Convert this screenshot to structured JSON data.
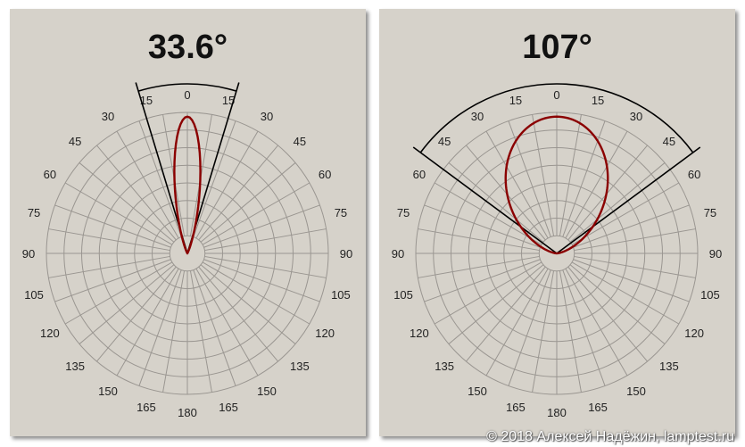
{
  "chart_data": [
    {
      "type": "polar",
      "title": "33.6°",
      "beam_angle_deg": 33.6,
      "angle_labels": [
        "0",
        "15",
        "30",
        "45",
        "60",
        "75",
        "90",
        "105",
        "120",
        "135",
        "150",
        "165",
        "180",
        "165",
        "150",
        "135",
        "120",
        "105",
        "90",
        "75",
        "60",
        "45",
        "30",
        "15"
      ],
      "radial_rings": 8,
      "series": [
        {
          "color": "#8b0000",
          "peak_relative": 0.97,
          "lobe_exponent": 40
        }
      ],
      "grid": true
    },
    {
      "type": "polar",
      "title": "107°",
      "beam_angle_deg": 107,
      "angle_labels": [
        "0",
        "15",
        "30",
        "45",
        "60",
        "75",
        "90",
        "105",
        "120",
        "135",
        "150",
        "165",
        "180",
        "165",
        "150",
        "135",
        "120",
        "105",
        "90",
        "75",
        "60",
        "45",
        "30",
        "15"
      ],
      "radial_rings": 8,
      "series": [
        {
          "color": "#8b0000",
          "peak_relative": 0.97,
          "lobe_exponent": 2.15
        }
      ],
      "grid": true
    }
  ],
  "copyright": "© 2018 Алексей Надёжин, lamptest.ru"
}
